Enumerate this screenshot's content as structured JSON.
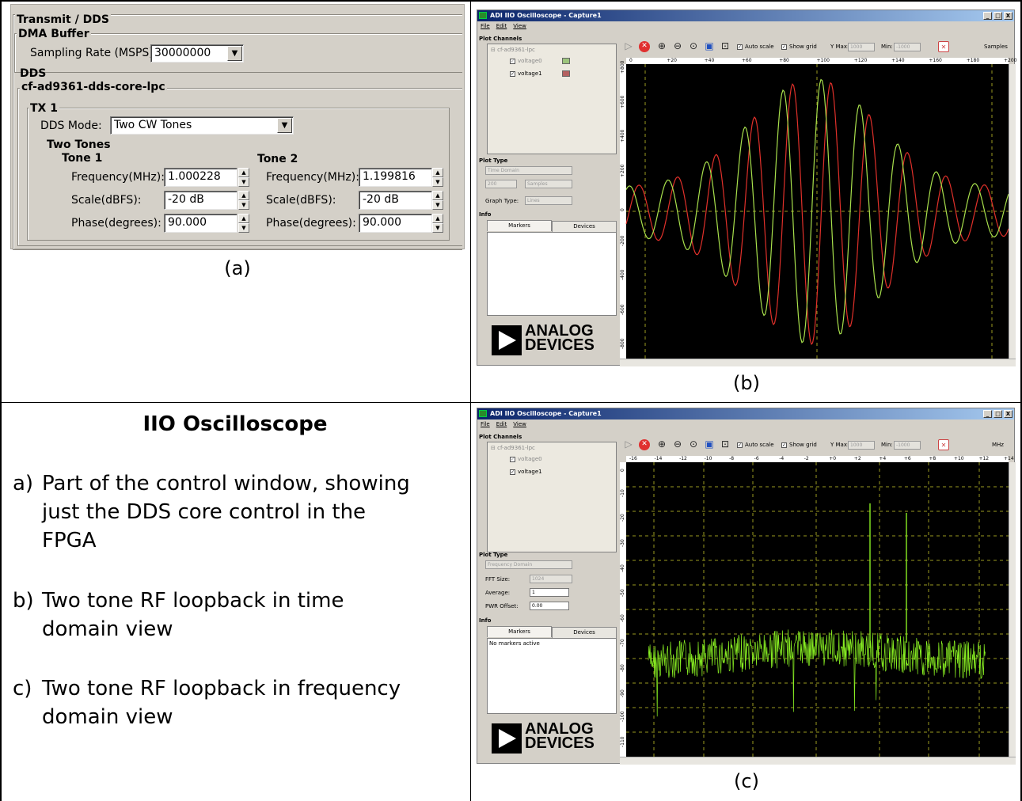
{
  "captions": {
    "a": "(a)",
    "b": "(b)",
    "c": "(c)"
  },
  "panel_a": {
    "transmit_title": "Transmit / DDS",
    "dma_title": "DMA Buffer",
    "sampling_label": "Sampling Rate (MSPS)",
    "sampling_value": "30000000",
    "dds_title": "DDS",
    "core_title": "cf-ad9361-dds-core-lpc",
    "tx_title": "TX 1",
    "mode_label": "DDS Mode:",
    "mode_value": "Two CW Tones",
    "two_tones": "Two Tones",
    "tone1": {
      "title": "Tone 1",
      "freq_label": "Frequency(MHz):",
      "freq": "1.000228",
      "scale_label": "Scale(dBFS):",
      "scale": "-20 dB",
      "phase_label": "Phase(degrees):",
      "phase": "90.000"
    },
    "tone2": {
      "title": "Tone 2",
      "freq_label": "Frequency(MHz):",
      "freq": "1.199816",
      "scale_label": "Scale(dBFS):",
      "scale": "-20 dB",
      "phase_label": "Phase(degrees):",
      "phase": "90.000"
    }
  },
  "scope_b": {
    "title": "ADI IIO Oscilloscope - Capture1",
    "win_btns": [
      "_",
      "□",
      "X"
    ],
    "menu": [
      "File",
      "Edit",
      "View"
    ],
    "plot_channels": "Plot Channels",
    "device": "cf-ad9361-lpc",
    "channels": [
      {
        "name": "voltage0",
        "color": "#9cc47c"
      },
      {
        "name": "voltage1",
        "color": "#b46060"
      }
    ],
    "plot_type": "Plot Type",
    "domain": "Time Domain",
    "samples_count": "200",
    "samples_unit": "Samples",
    "graph_type_label": "Graph Type:",
    "graph_type": "Lines",
    "info": "Info",
    "tabs": [
      "Markers",
      "Devices"
    ],
    "auto_scale": "Auto scale",
    "show_grid": "Show grid",
    "ymax_label": "Y Max:",
    "ymax": "1000",
    "ymin_label": "Min:",
    "ymin": "-1000",
    "unit": "Samples",
    "xticks": [
      "0",
      "+20",
      "+40",
      "+60",
      "+80",
      "+100",
      "+120",
      "+140",
      "+160",
      "+180",
      "+200"
    ],
    "yticks": [
      "+800",
      "+600",
      "+400",
      "+200",
      "0",
      "-200",
      "-400",
      "-600",
      "-800"
    ],
    "logo": [
      "ANALOG",
      "DEVICES"
    ]
  },
  "scope_c": {
    "title": "ADI IIO Oscilloscope - Capture1",
    "win_btns": [
      "_",
      "□",
      "X"
    ],
    "menu": [
      "File",
      "Edit",
      "View"
    ],
    "plot_channels": "Plot Channels",
    "device": "cf-ad9361-lpc",
    "channels": [
      {
        "name": "voltage0"
      },
      {
        "name": "voltage1"
      }
    ],
    "plot_type": "Plot Type",
    "domain": "Frequency Domain",
    "fft_label": "FFT Size:",
    "fft": "1024",
    "avg_label": "Average:",
    "avg": "1",
    "pwr_label": "PWR Offset:",
    "pwr": "0.00",
    "info": "Info",
    "tabs": [
      "Markers",
      "Devices"
    ],
    "markers_text": "No markers active",
    "auto_scale": "Auto scale",
    "show_grid": "Show grid",
    "ymax_label": "Y Max:",
    "ymax": "1000",
    "ymin_label": "Min:",
    "ymin": "-1000",
    "unit": "MHz",
    "xticks": [
      "-16",
      "-14",
      "-12",
      "-10",
      "-8",
      "-6",
      "-4",
      "-2",
      "+0",
      "+2",
      "+4",
      "+6",
      "+8",
      "+10",
      "+12",
      "+14"
    ],
    "yticks": [
      "0",
      "-10",
      "-20",
      "-30",
      "-40",
      "-50",
      "-60",
      "-70",
      "-80",
      "-90",
      "-100",
      "-110"
    ],
    "logo": [
      "ANALOG",
      "DEVICES"
    ]
  },
  "description": {
    "title": "IIO Oscilloscope",
    "items": [
      {
        "letter": "a)",
        "text": [
          "Part of the control window, showing",
          "just the DDS core control in the",
          "FPGA"
        ]
      },
      {
        "letter": "b)",
        "text": [
          "Two tone RF loopback in time",
          "domain view"
        ]
      },
      {
        "letter": "c)",
        "text": [
          "Two tone RF loopback in frequency",
          "domain view"
        ]
      }
    ]
  },
  "colors": {
    "trace_green": "#a8e04c",
    "trace_red": "#e0302a",
    "grid": "#9a9a20",
    "fft_green": "#88ee22",
    "title_start": "#0a246a",
    "title_end": "#a6caf0"
  }
}
